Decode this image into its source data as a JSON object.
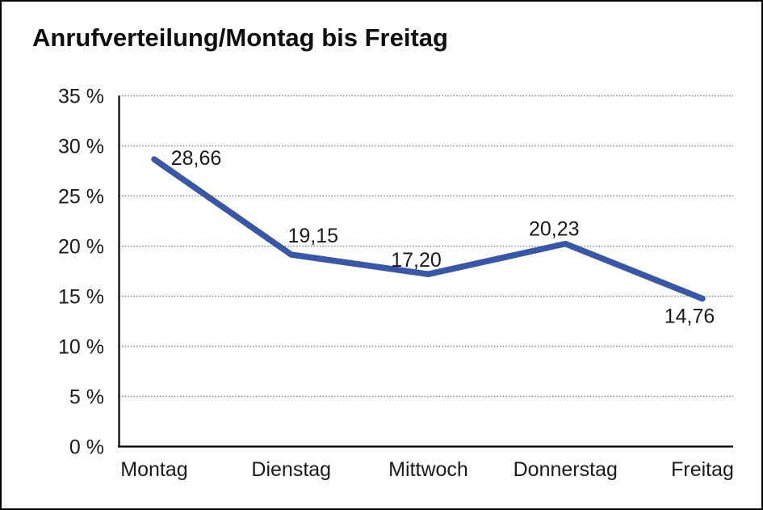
{
  "chart_data": {
    "type": "line",
    "title": "Anrufverteilung/Montag bis Freitag",
    "categories": [
      "Montag",
      "Dienstag",
      "Mittwoch",
      "Donnerstag",
      "Freitag"
    ],
    "values": [
      28.66,
      19.15,
      17.2,
      20.23,
      14.76
    ],
    "value_labels": [
      "28,66",
      "19,15",
      "17,20",
      "20,23",
      "14,76"
    ],
    "ytick_labels": [
      "0 %",
      "5 %",
      "10 %",
      "15 %",
      "20 %",
      "25 %",
      "30 %",
      "35 %"
    ],
    "ytick_values": [
      0,
      5,
      10,
      15,
      20,
      25,
      30,
      35
    ],
    "ylim": [
      0,
      35
    ],
    "xlabel": "",
    "ylabel": "",
    "legend": "none",
    "grid": "horizontal-dotted",
    "colors": {
      "line": "#3A57A6",
      "axis": "#000000",
      "gridline": "#7f7f7f",
      "text": "#1a1a1a",
      "background": "#ffffff"
    }
  }
}
